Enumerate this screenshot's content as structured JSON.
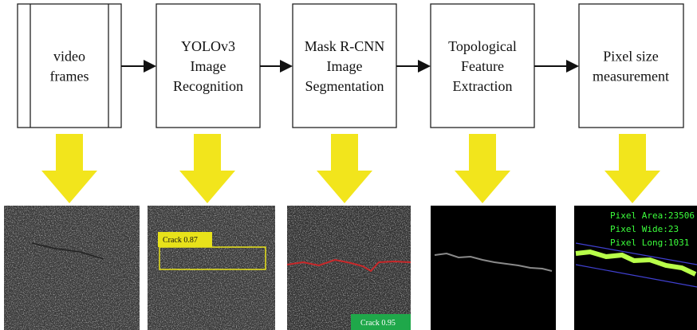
{
  "nodes": [
    {
      "lines": [
        "video",
        "frames"
      ]
    },
    {
      "lines": [
        "YOLOv3",
        "Image",
        "Recognition"
      ]
    },
    {
      "lines": [
        "Mask R-CNN",
        "Image",
        "Segmentation"
      ]
    },
    {
      "lines": [
        "Topological",
        "Feature",
        "Extraction"
      ]
    },
    {
      "lines": [
        "Pixel size",
        "measurement"
      ]
    }
  ],
  "images": {
    "detection_label": "Crack 0.87",
    "segmentation_label": "Crack 0.95",
    "measurements": [
      "Pixel Area:23506",
      "Pixel Wide:23",
      "Pixel Long:1031"
    ]
  }
}
